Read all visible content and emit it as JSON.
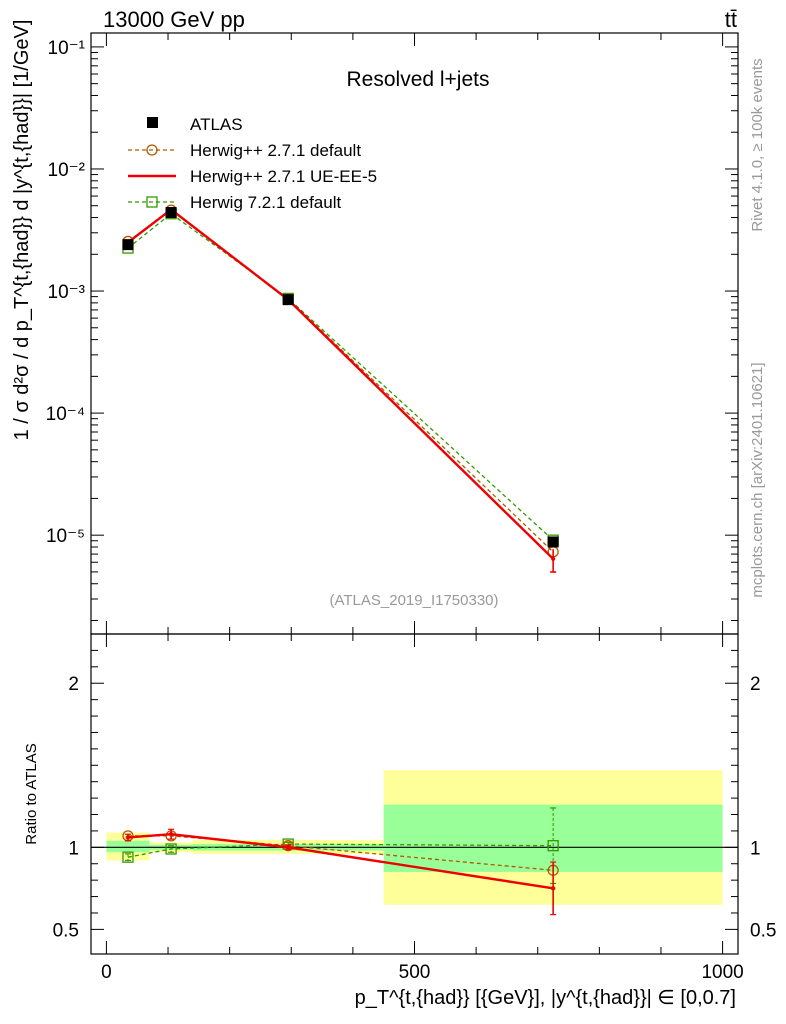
{
  "header": {
    "energy": "13000 GeV pp",
    "process": "tt̄"
  },
  "side_labels": {
    "rivet": "Rivet 4.1.0, ≥ 100k events",
    "source": "mcplots.cern.ch [arXiv:2401.10621]"
  },
  "chart_data": [
    {
      "type": "line",
      "panel": "main",
      "title": "Resolved l+jets",
      "watermark": "(ATLAS_2019_I1750330)",
      "ylabel": "1 / σ d²σ / d p_T^{t,{had}} d |y^{t,{had}}| [1/GeV]",
      "xlabel": "p_T^{t,{had}} [{GeV}], |y^{t,{had}}| ∈ [0,0.7]",
      "yscale": "log",
      "ylim": [
        1.55e-06,
        0.13
      ],
      "xlim": [
        -25,
        1025
      ],
      "y_tick_labels": [
        "10⁻¹",
        "10⁻²",
        "10⁻³",
        "10⁻⁴",
        "10⁻⁵"
      ],
      "y_tick_values": [
        0.1,
        0.01,
        0.001,
        0.0001,
        1e-05
      ],
      "legend_position": "top-left",
      "x": [
        35,
        105,
        295,
        725
      ],
      "series": [
        {
          "name": "ATLAS",
          "values": [
            0.0024,
            0.0044,
            0.00085,
            8.8e-06
          ],
          "color": "#000000",
          "style": "data"
        },
        {
          "name": "Herwig++ 2.7.1 default",
          "values": [
            0.00255,
            0.0046,
            0.00086,
            7.3e-06
          ],
          "color": "#b35900",
          "style": "dashed-circle"
        },
        {
          "name": "Herwig++ 2.7.1 UE-EE-5",
          "values": [
            0.0025,
            0.00465,
            0.00085,
            6.4e-06
          ],
          "color": "#ee0000",
          "style": "solid"
        },
        {
          "name": "Herwig 7.2.1 default",
          "values": [
            0.00225,
            0.0043,
            0.00087,
            9.1e-06
          ],
          "color": "#339900",
          "style": "dashed-square"
        }
      ]
    },
    {
      "type": "line",
      "panel": "ratio",
      "ylabel": "Ratio to ATLAS",
      "ylim": [
        0.35,
        2.3
      ],
      "xlim": [
        -25,
        1025
      ],
      "y_tick_labels": [
        "2",
        "1",
        "0.5"
      ],
      "y_tick_values": [
        2,
        1,
        0.5
      ],
      "x_tick_labels": [
        "0",
        "500",
        "1000"
      ],
      "x_tick_values": [
        0,
        500,
        1000
      ],
      "bins": [
        [
          0,
          70
        ],
        [
          70,
          140
        ],
        [
          140,
          450
        ],
        [
          450,
          1000
        ]
      ],
      "band_inner": [
        [
          0.97,
          1.04
        ],
        [
          0.985,
          1.015
        ],
        [
          0.98,
          1.02
        ],
        [
          0.85,
          1.26
        ]
      ],
      "band_outer": [
        [
          0.92,
          1.09
        ],
        [
          0.97,
          1.03
        ],
        [
          0.96,
          1.045
        ],
        [
          0.65,
          1.47
        ]
      ],
      "x": [
        35,
        105,
        295,
        725
      ],
      "series": [
        {
          "name": "Herwig++ 2.7.1 default",
          "values": [
            1.07,
            1.07,
            1.01,
            0.86
          ],
          "color": "#b35900"
        },
        {
          "name": "Herwig++ 2.7.1 UE-EE-5",
          "values": [
            1.06,
            1.08,
            1.0,
            0.75
          ],
          "err": [
            0.02,
            0.03,
            0.015,
            0.16
          ],
          "color": "#ee0000"
        },
        {
          "name": "Herwig 7.2.1 default",
          "values": [
            0.94,
            0.99,
            1.02,
            1.01
          ],
          "err": [
            0.02,
            0.02,
            0.01,
            0.23
          ],
          "color": "#339900"
        }
      ]
    }
  ]
}
